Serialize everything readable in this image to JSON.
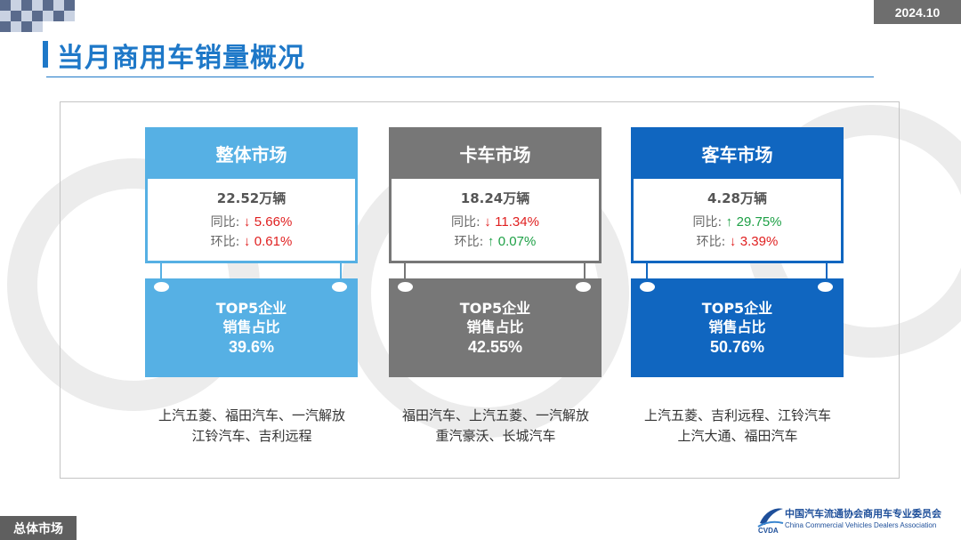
{
  "header": {
    "date_badge": "2024.10",
    "title": "当月商用车销量概况"
  },
  "colors": {
    "overall": "#56b0e4",
    "truck": "#777777",
    "bus": "#1066c0",
    "title": "#1e78c8",
    "down": "#e02020",
    "up": "#1ea046"
  },
  "panels": [
    {
      "name": "整体市场",
      "total": "22.52万辆",
      "yoy_label": "同比:",
      "yoy_arrow": "↓",
      "yoy_value": "5.66%",
      "mom_label": "环比:",
      "mom_arrow": "↓",
      "mom_value": "0.61%",
      "top5_line1": "TOP5企业",
      "top5_line2": "销售占比",
      "top5_share": "39.6%",
      "companies_line1": "上汽五菱、福田汽车、一汽解放",
      "companies_line2": "江铃汽车、吉利远程"
    },
    {
      "name": "卡车市场",
      "total": "18.24万辆",
      "yoy_label": "同比:",
      "yoy_arrow": "↓",
      "yoy_value": "11.34%",
      "mom_label": "环比:",
      "mom_arrow": "↑",
      "mom_value": "0.07%",
      "top5_line1": "TOP5企业",
      "top5_line2": "销售占比",
      "top5_share": "42.55%",
      "companies_line1": "福田汽车、上汽五菱、一汽解放",
      "companies_line2": "重汽豪沃、长城汽车"
    },
    {
      "name": "客车市场",
      "total": "4.28万辆",
      "yoy_label": "同比:",
      "yoy_arrow": "↑",
      "yoy_value": "29.75%",
      "mom_label": "环比:",
      "mom_arrow": "↓",
      "mom_value": "3.39%",
      "top5_line1": "TOP5企业",
      "top5_line2": "销售占比",
      "top5_share": "50.76%",
      "companies_line1": "上汽五菱、吉利远程、江铃汽车",
      "companies_line2": "上汽大通、福田汽车"
    }
  ],
  "footer": {
    "section_tag": "总体市场",
    "org_cn": "中国汽车流通协会商用车专业委员会",
    "org_en": "China Commercial Vehicles Dealers Association",
    "logo_text": "CVDA",
    "logo_icon": "cvda-swoosh-logo"
  }
}
